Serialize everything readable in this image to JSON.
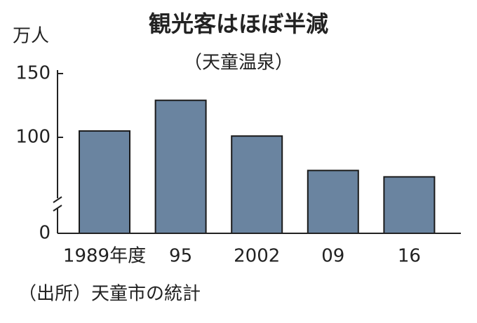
{
  "chart_data": {
    "type": "bar",
    "title": "観光客はほぼ半減",
    "subtitle": "（天童温泉）",
    "y_label": "万人",
    "source": "（出所）天童市の統計",
    "categories": [
      "1989年度",
      "95",
      "2002",
      "09",
      "16"
    ],
    "values": [
      105,
      129,
      101,
      74,
      69
    ],
    "color": "#6a84a0",
    "ylim": [
      0,
      150
    ],
    "yticks": [
      0,
      100,
      150
    ],
    "axis_break": true
  }
}
